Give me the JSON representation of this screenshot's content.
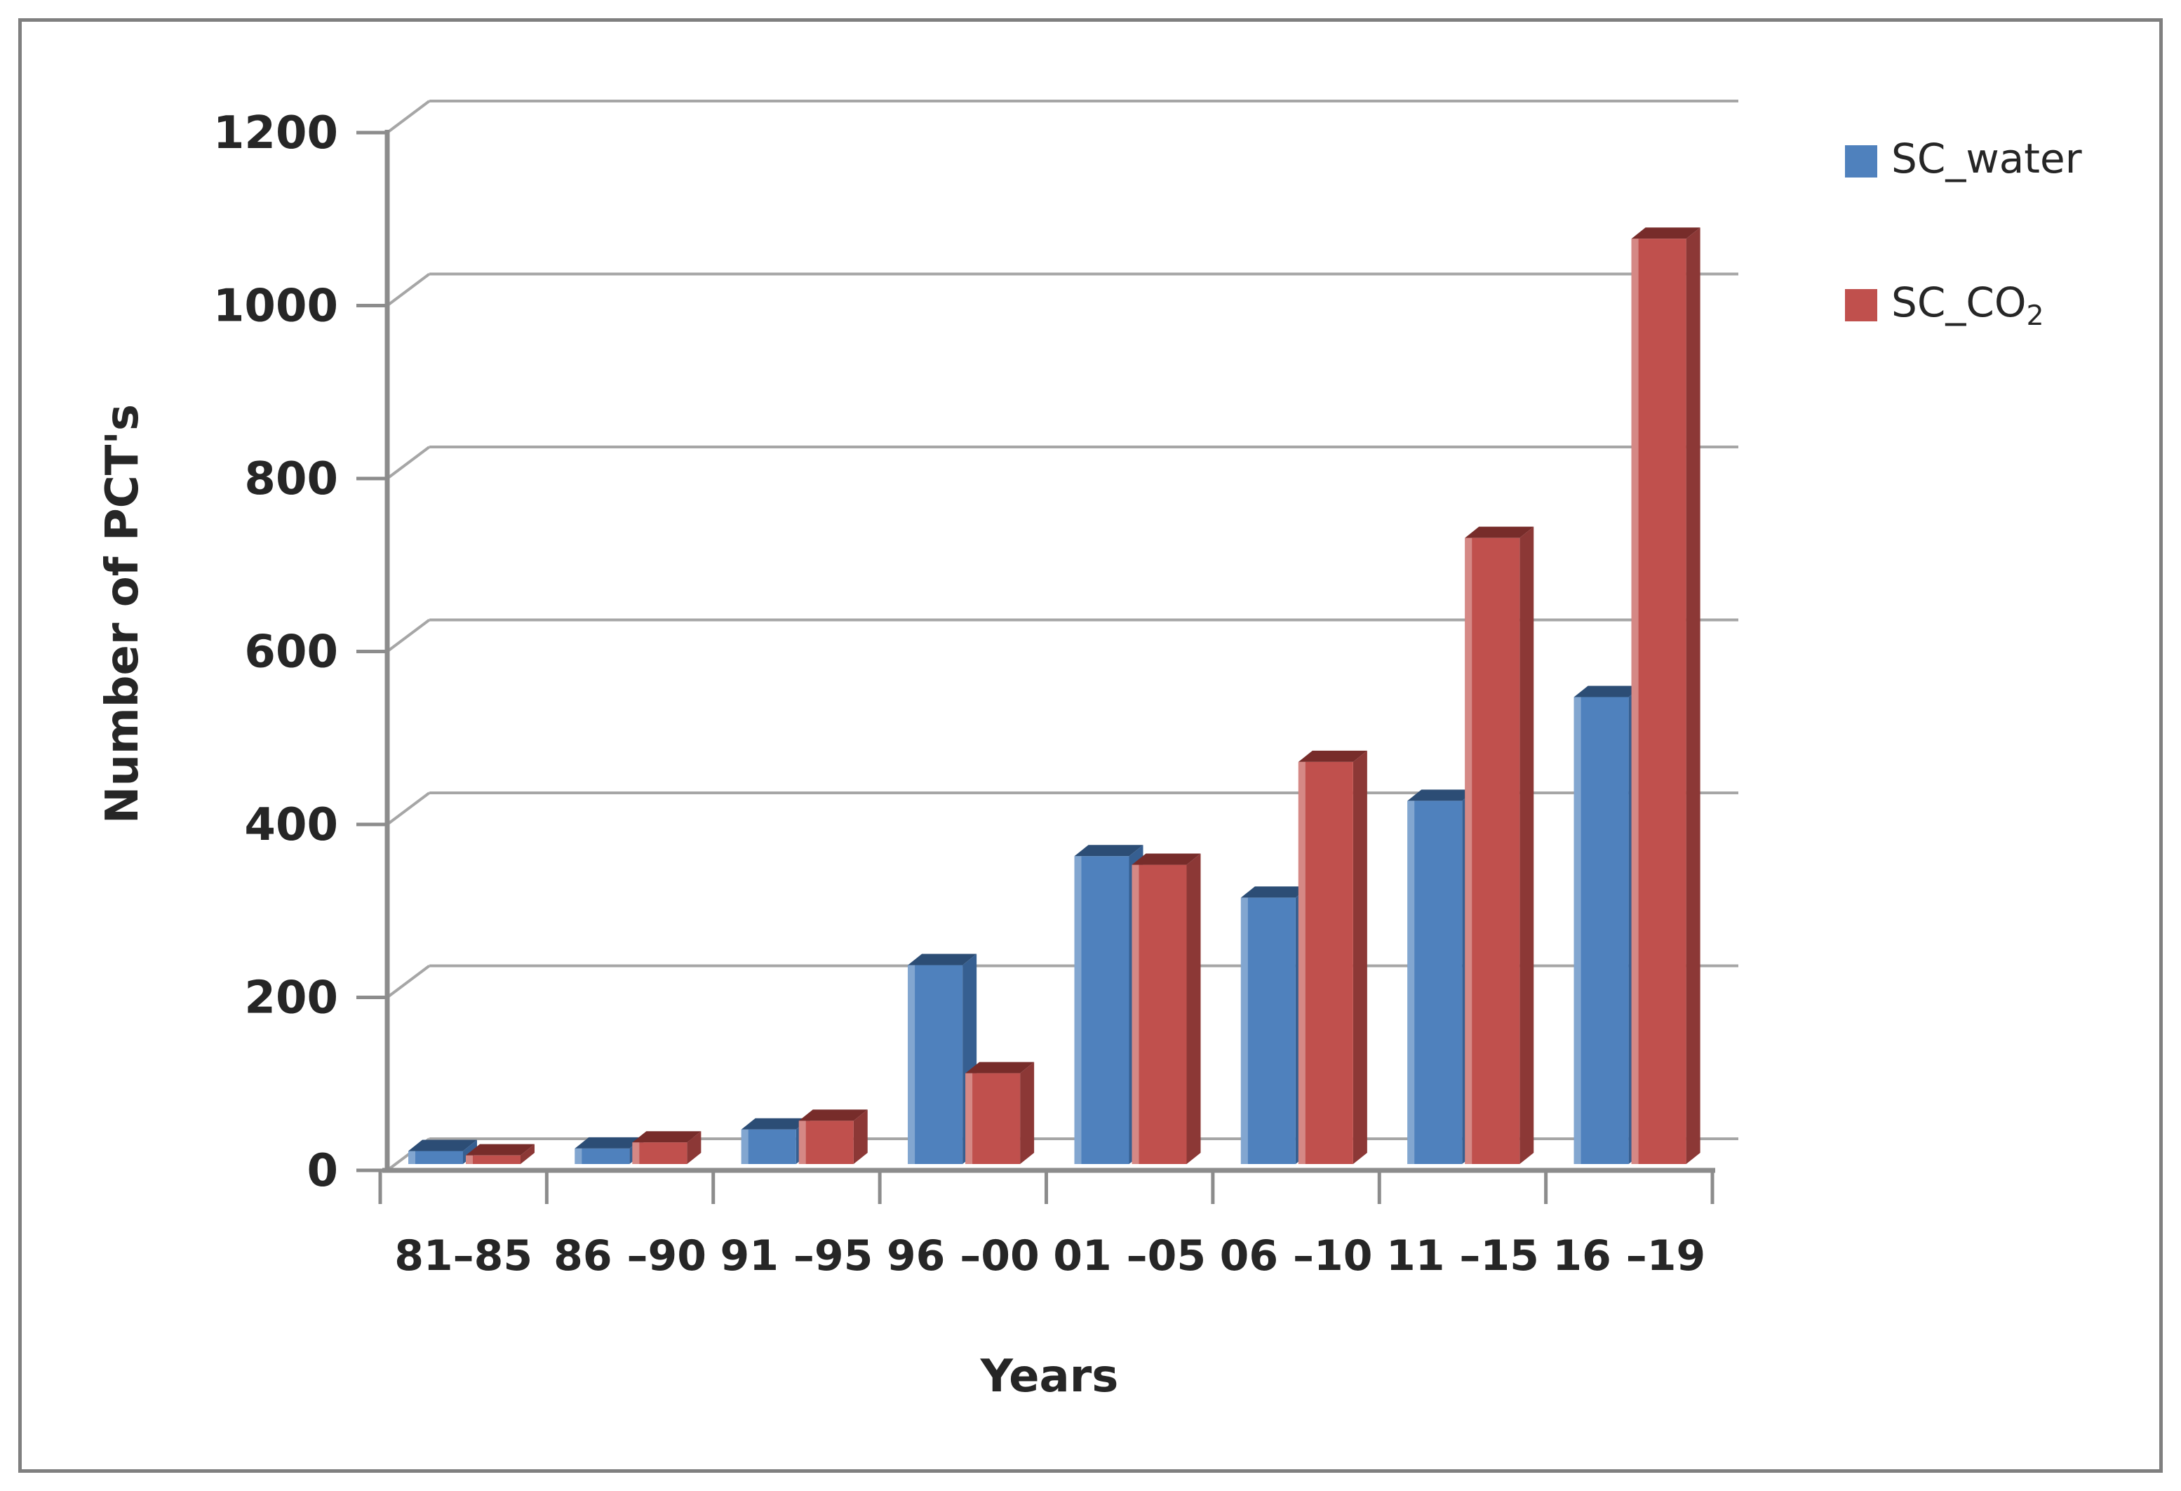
{
  "page": {
    "background": "#ffffff",
    "frame_border_color": "#7f7f7f"
  },
  "chart_data": {
    "type": "bar",
    "style": "3d-clustered-column",
    "title": "",
    "xlabel": "Years",
    "ylabel": "Number of PCT's",
    "categories": [
      "81–85",
      "86 –90",
      "91 –95",
      "96 –00",
      "01 –05",
      "06 –10",
      "11 –15",
      "16 –19"
    ],
    "series": [
      {
        "name": "SC_water",
        "values": [
          15,
          18,
          40,
          230,
          356,
          308,
          420,
          540
        ],
        "color": "#4f81bd",
        "color_top": "#2c4d75",
        "color_side": "#365f91",
        "color_highlight": "#8fafd4"
      },
      {
        "name": "SC_CO2",
        "values": [
          10,
          25,
          50,
          105,
          346,
          465,
          724,
          1070
        ],
        "color": "#c0504d",
        "color_top": "#772c2a",
        "color_side": "#8c3836",
        "color_highlight": "#d99694"
      }
    ],
    "ylim": [
      0,
      1200
    ],
    "ytick_interval": 200,
    "yticks": [
      0,
      200,
      400,
      600,
      800,
      1000,
      1200
    ],
    "grid": "horizontal",
    "legend_position": "top-right",
    "axis_color": "#8c8c8c",
    "grid_color": "#a6a6a6",
    "text_color": "#262626"
  },
  "legend": {
    "items": [
      {
        "label": "SC_water",
        "sub": "",
        "swatch": "#4f81bd"
      },
      {
        "label": "SC_CO",
        "sub": "2",
        "swatch": "#c0504d"
      }
    ]
  }
}
